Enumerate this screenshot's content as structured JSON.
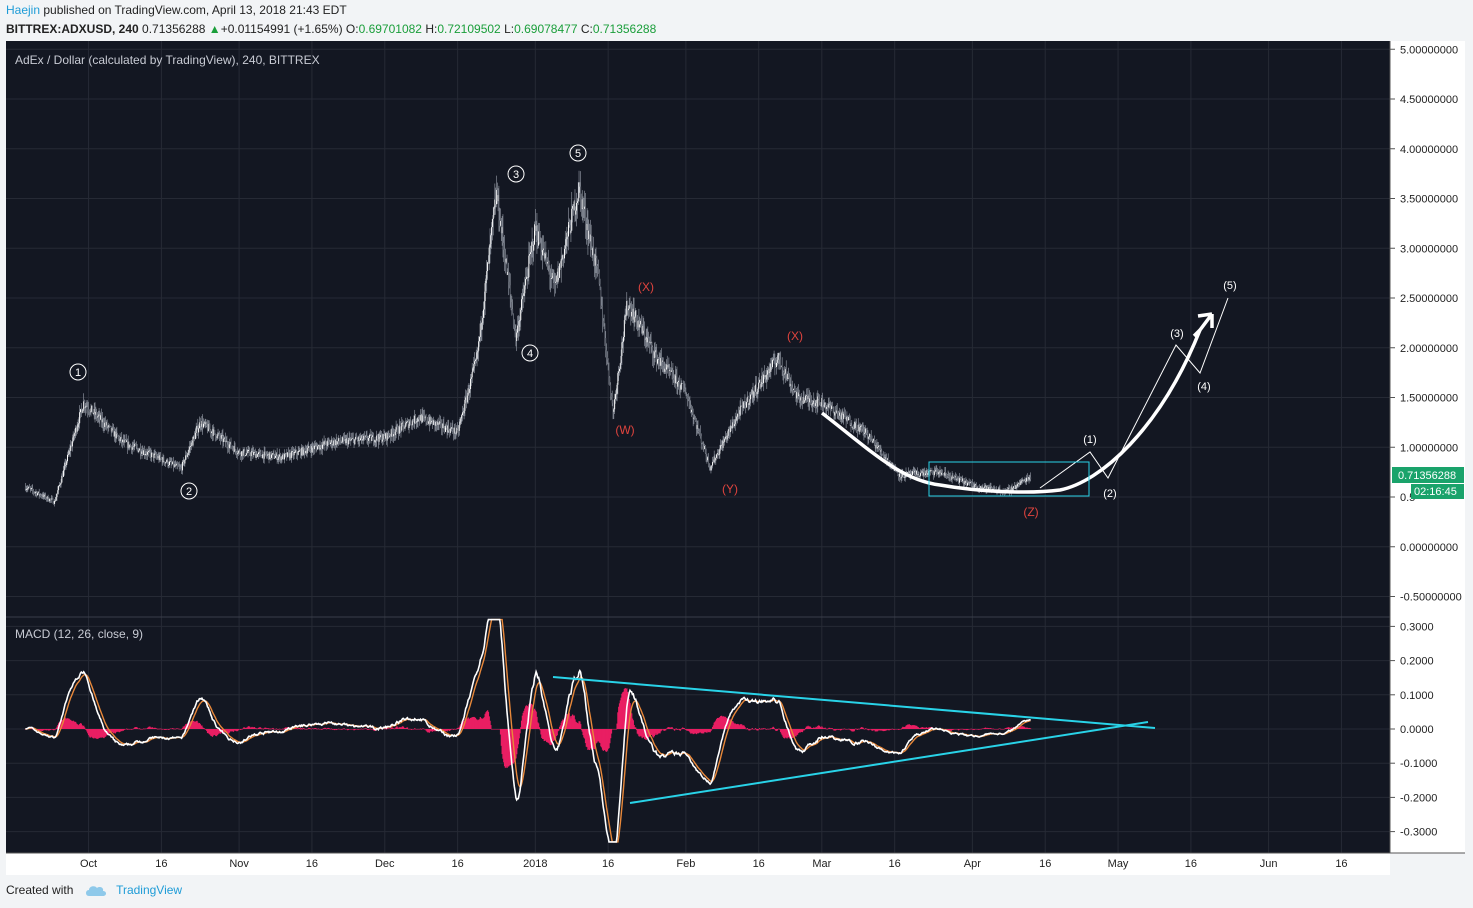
{
  "header": {
    "author": "Haejin",
    "published_text": " published on TradingView.com, April 13, 2018 21:43 EDT",
    "symbol": "BITTREX:ADXUSD, 240",
    "last": "0.71356288",
    "change": "+0.01154991 (+1.65%)",
    "o_label": "O:",
    "o": "0.69701082",
    "h_label": "H:",
    "h": "0.72109502",
    "l_label": "L:",
    "l": "0.69078477",
    "c_label": "C:",
    "c": "0.71356288"
  },
  "main_pane": {
    "title": "AdEx / Dollar (calculated by TradingView), 240, BITTREX",
    "price_label": "0.71356288",
    "countdown_label": "02:16:45",
    "axis_ticks": [
      "5.00000000",
      "4.50000000",
      "4.00000000",
      "3.50000000",
      "3.00000000",
      "2.50000000",
      "2.00000000",
      "1.50000000",
      "1.00000000",
      "0.5",
      "0.00000000",
      "-0.50000000"
    ],
    "wave_labels": {
      "impulse": [
        "1",
        "2",
        "3",
        "4",
        "5"
      ],
      "correction": [
        "(W)",
        "(X)",
        "(Y)",
        "(X)",
        "(Z)"
      ],
      "projection": [
        "(1)",
        "(2)",
        "(3)",
        "(4)",
        "(5)"
      ]
    }
  },
  "macd_pane": {
    "title": "MACD (12, 26, close, 9)",
    "axis_ticks": [
      "0.3000",
      "0.2000",
      "0.1000",
      "0.0000",
      "-0.1000",
      "-0.2000",
      "-0.3000"
    ]
  },
  "time_axis": [
    "Oct",
    "16",
    "Nov",
    "16",
    "Dec",
    "16",
    "2018",
    "16",
    "Feb",
    "16",
    "Mar",
    "16",
    "Apr",
    "16",
    "May",
    "16",
    "Jun",
    "16"
  ],
  "footer": {
    "created_with": "Created with",
    "brand": "TradingView"
  },
  "colors": {
    "background": "#131722",
    "up": "#ffffff",
    "macd_line": "#ffffff",
    "signal_line": "#e8883a",
    "histogram": "#e91e63",
    "trendline": "#29d3e8",
    "correction_label": "#e0443e",
    "last_price": "#1aa36b"
  },
  "chart_data": {
    "type": "line",
    "title": "AdEx / Dollar (calculated by TradingView), 240, BITTREX",
    "series": [
      {
        "name": "ADXUSD",
        "x": [
          "2017-09-18",
          "2017-09-24",
          "2017-09-30",
          "2017-10-08",
          "2017-10-16",
          "2017-10-20",
          "2017-10-24",
          "2017-11-01",
          "2017-11-10",
          "2017-11-20",
          "2017-12-01",
          "2017-12-08",
          "2017-12-16",
          "2017-12-20",
          "2017-12-24",
          "2017-12-28",
          "2018-01-01",
          "2018-01-05",
          "2018-01-10",
          "2018-01-14",
          "2018-01-17",
          "2018-01-20",
          "2018-01-26",
          "2018-02-01",
          "2018-02-06",
          "2018-02-12",
          "2018-02-20",
          "2018-02-24",
          "2018-03-01",
          "2018-03-10",
          "2018-03-17",
          "2018-03-25",
          "2018-04-01",
          "2018-04-08",
          "2018-04-13"
        ],
        "values": [
          0.6,
          0.45,
          1.45,
          1.05,
          0.88,
          0.78,
          1.25,
          0.95,
          0.9,
          1.05,
          1.1,
          1.3,
          1.15,
          1.9,
          3.55,
          2.1,
          3.2,
          2.6,
          3.6,
          2.7,
          1.35,
          2.45,
          1.9,
          1.55,
          0.8,
          1.35,
          1.9,
          1.5,
          1.45,
          1.15,
          0.72,
          0.75,
          0.62,
          0.55,
          0.71
        ]
      }
    ],
    "ylim": [
      -0.5,
      5.0
    ],
    "macd": {
      "fast": 12,
      "slow": 26,
      "source": "close",
      "signal": 9,
      "ylim": [
        -0.3,
        0.3
      ]
    }
  }
}
